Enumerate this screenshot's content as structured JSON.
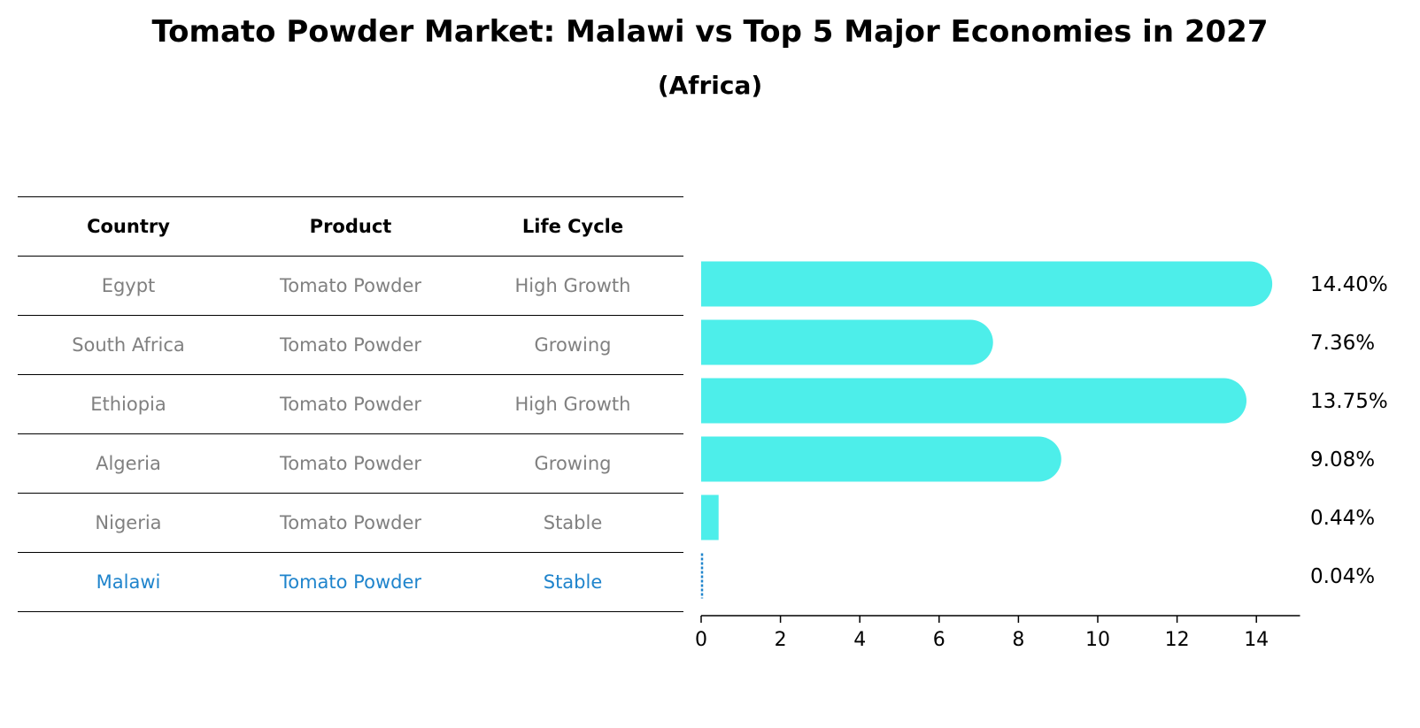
{
  "title": "Tomato Powder Market: Malawi vs Top 5 Major Economies in 2027",
  "subtitle": "(Africa)",
  "table": {
    "headers": [
      "Country",
      "Product",
      "Life Cycle"
    ],
    "rows": [
      [
        "Egypt",
        "Tomato Powder",
        "High Growth"
      ],
      [
        "South Africa",
        "Tomato Powder",
        "Growing"
      ],
      [
        "Ethiopia",
        "Tomato Powder",
        "High Growth"
      ],
      [
        "Algeria",
        "Tomato Powder",
        "Growing"
      ],
      [
        "Nigeria",
        "Tomato Powder",
        "Stable"
      ],
      [
        "Malawi",
        "Tomato Powder",
        "Stable"
      ]
    ]
  },
  "colors": {
    "bar": "#4deeea",
    "highlight": "#1f84cc",
    "muted": "#808080"
  },
  "chart_data": {
    "type": "bar",
    "orientation": "horizontal",
    "categories": [
      "Egypt",
      "South Africa",
      "Ethiopia",
      "Algeria",
      "Nigeria",
      "Malawi"
    ],
    "values": [
      14.4,
      7.36,
      13.75,
      9.08,
      0.44,
      0.04
    ],
    "value_labels": [
      "14.40%",
      "7.36%",
      "13.75%",
      "9.08%",
      "0.44%",
      "0.04%"
    ],
    "highlight": "Malawi",
    "xlim": [
      0,
      15.1
    ],
    "xticks": [
      "0",
      "2",
      "4",
      "6",
      "8",
      "10",
      "12",
      "14"
    ],
    "title": "Tomato Powder Market: Malawi vs Top 5 Major Economies in 2027",
    "subtitle": "(Africa)",
    "xlabel": "",
    "ylabel": ""
  }
}
